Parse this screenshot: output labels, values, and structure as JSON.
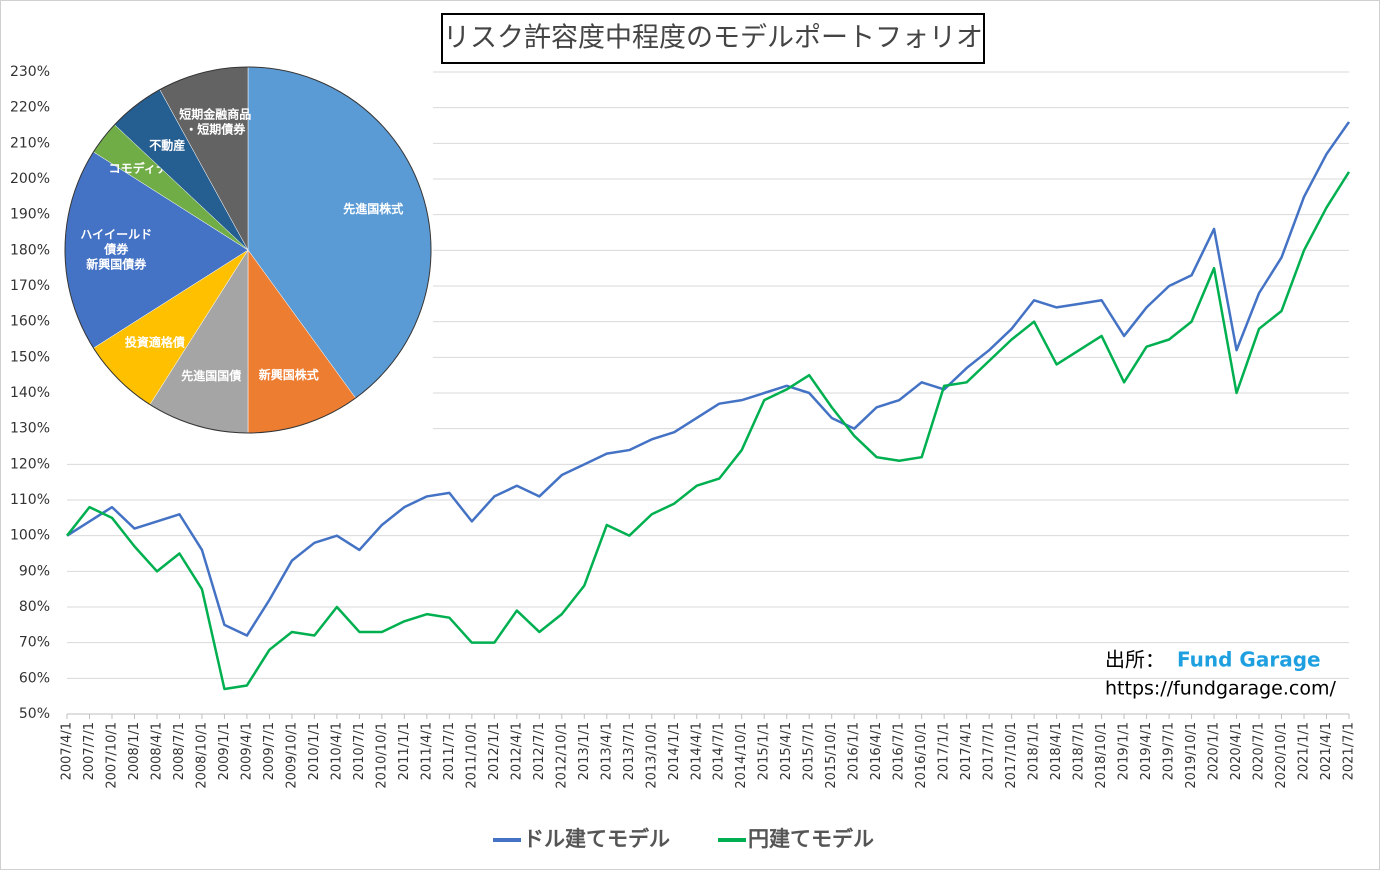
{
  "chart_data": [
    {
      "type": "line",
      "title": "リスク許容度中程度のモデルポートフォリオ",
      "categories": [
        "2007/4/1",
        "2007/7/1",
        "2007/10/1",
        "2008/1/1",
        "2008/4/1",
        "2008/7/1",
        "2008/10/1",
        "2009/1/1",
        "2009/4/1",
        "2009/7/1",
        "2009/10/1",
        "2010/1/1",
        "2010/4/1",
        "2010/7/1",
        "2010/10/1",
        "2011/1/1",
        "2011/4/1",
        "2011/7/1",
        "2011/10/1",
        "2012/1/1",
        "2012/4/1",
        "2012/7/1",
        "2012/10/1",
        "2013/1/1",
        "2013/4/1",
        "2013/7/1",
        "2013/10/1",
        "2014/1/1",
        "2014/4/1",
        "2014/7/1",
        "2014/10/1",
        "2015/1/1",
        "2015/4/1",
        "2015/7/1",
        "2015/10/1",
        "2016/1/1",
        "2016/4/1",
        "2016/7/1",
        "2016/10/1",
        "2017/1/1",
        "2017/4/1",
        "2017/7/1",
        "2017/10/1",
        "2018/1/1",
        "2018/4/1",
        "2018/7/1",
        "2018/10/1",
        "2019/1/1",
        "2019/4/1",
        "2019/7/1",
        "2019/10/1",
        "2020/1/1",
        "2020/4/1",
        "2020/7/1",
        "2020/10/1",
        "2021/1/1",
        "2021/4/1",
        "2021/7/1"
      ],
      "series": [
        {
          "name": "ドル建てモデル",
          "color": "#4472c4",
          "values": [
            100,
            104,
            108,
            102,
            104,
            106,
            96,
            75,
            72,
            82,
            93,
            98,
            100,
            96,
            103,
            108,
            111,
            112,
            104,
            111,
            114,
            111,
            117,
            120,
            123,
            124,
            127,
            129,
            133,
            137,
            138,
            140,
            142,
            140,
            133,
            130,
            136,
            138,
            143,
            141,
            147,
            152,
            158,
            166,
            164,
            165,
            166,
            156,
            164,
            170,
            173,
            186,
            152,
            168,
            178,
            195,
            207,
            216
          ]
        },
        {
          "name": "円建てモデル",
          "color": "#00b050",
          "values": [
            100,
            108,
            105,
            97,
            90,
            95,
            85,
            57,
            58,
            68,
            73,
            72,
            80,
            73,
            73,
            76,
            78,
            77,
            70,
            70,
            79,
            73,
            78,
            86,
            103,
            100,
            106,
            109,
            114,
            116,
            124,
            138,
            141,
            145,
            136,
            128,
            122,
            121,
            122,
            142,
            143,
            149,
            155,
            160,
            148,
            152,
            156,
            143,
            153,
            155,
            160,
            175,
            140,
            158,
            163,
            180,
            192,
            202
          ]
        }
      ],
      "ylim": [
        50,
        230
      ],
      "yticks": [
        {
          "value": 50,
          "label": "50%"
        },
        {
          "value": 60,
          "label": "60%"
        },
        {
          "value": 70,
          "label": "70%"
        },
        {
          "value": 80,
          "label": "80%"
        },
        {
          "value": 90,
          "label": "90%"
        },
        {
          "value": 100,
          "label": "100%"
        },
        {
          "value": 110,
          "label": "110%"
        },
        {
          "value": 120,
          "label": "120%"
        },
        {
          "value": 130,
          "label": "130%"
        },
        {
          "value": 140,
          "label": "140%"
        },
        {
          "value": 150,
          "label": "150%"
        },
        {
          "value": 160,
          "label": "160%"
        },
        {
          "value": 170,
          "label": "170%"
        },
        {
          "value": 180,
          "label": "180%"
        },
        {
          "value": 190,
          "label": "190%"
        },
        {
          "value": 200,
          "label": "200%"
        },
        {
          "value": 210,
          "label": "210%"
        },
        {
          "value": 220,
          "label": "220%"
        },
        {
          "value": 230,
          "label": "230%"
        }
      ],
      "grid": true,
      "source_label": "出所：",
      "source_name": "Fund Garage",
      "source_url": "https://fundgarage.com/"
    },
    {
      "type": "pie",
      "labels": [
        [
          "先進国株式"
        ],
        [
          "新興国株式"
        ],
        [
          "先進国国債"
        ],
        [
          "投資適格債"
        ],
        [
          "ハイイールド",
          "債券",
          "新興国債券"
        ],
        [
          "コモディティ"
        ],
        [
          "不動産"
        ],
        [
          "短期金融商品",
          "・短期債券"
        ]
      ],
      "values": [
        40,
        10,
        9,
        7,
        18,
        3,
        5,
        8
      ],
      "colors": [
        "#5b9bd5",
        "#ed7d31",
        "#a5a5a5",
        "#ffc000",
        "#4472c4",
        "#70ad47",
        "#255e91",
        "#636363"
      ]
    }
  ]
}
